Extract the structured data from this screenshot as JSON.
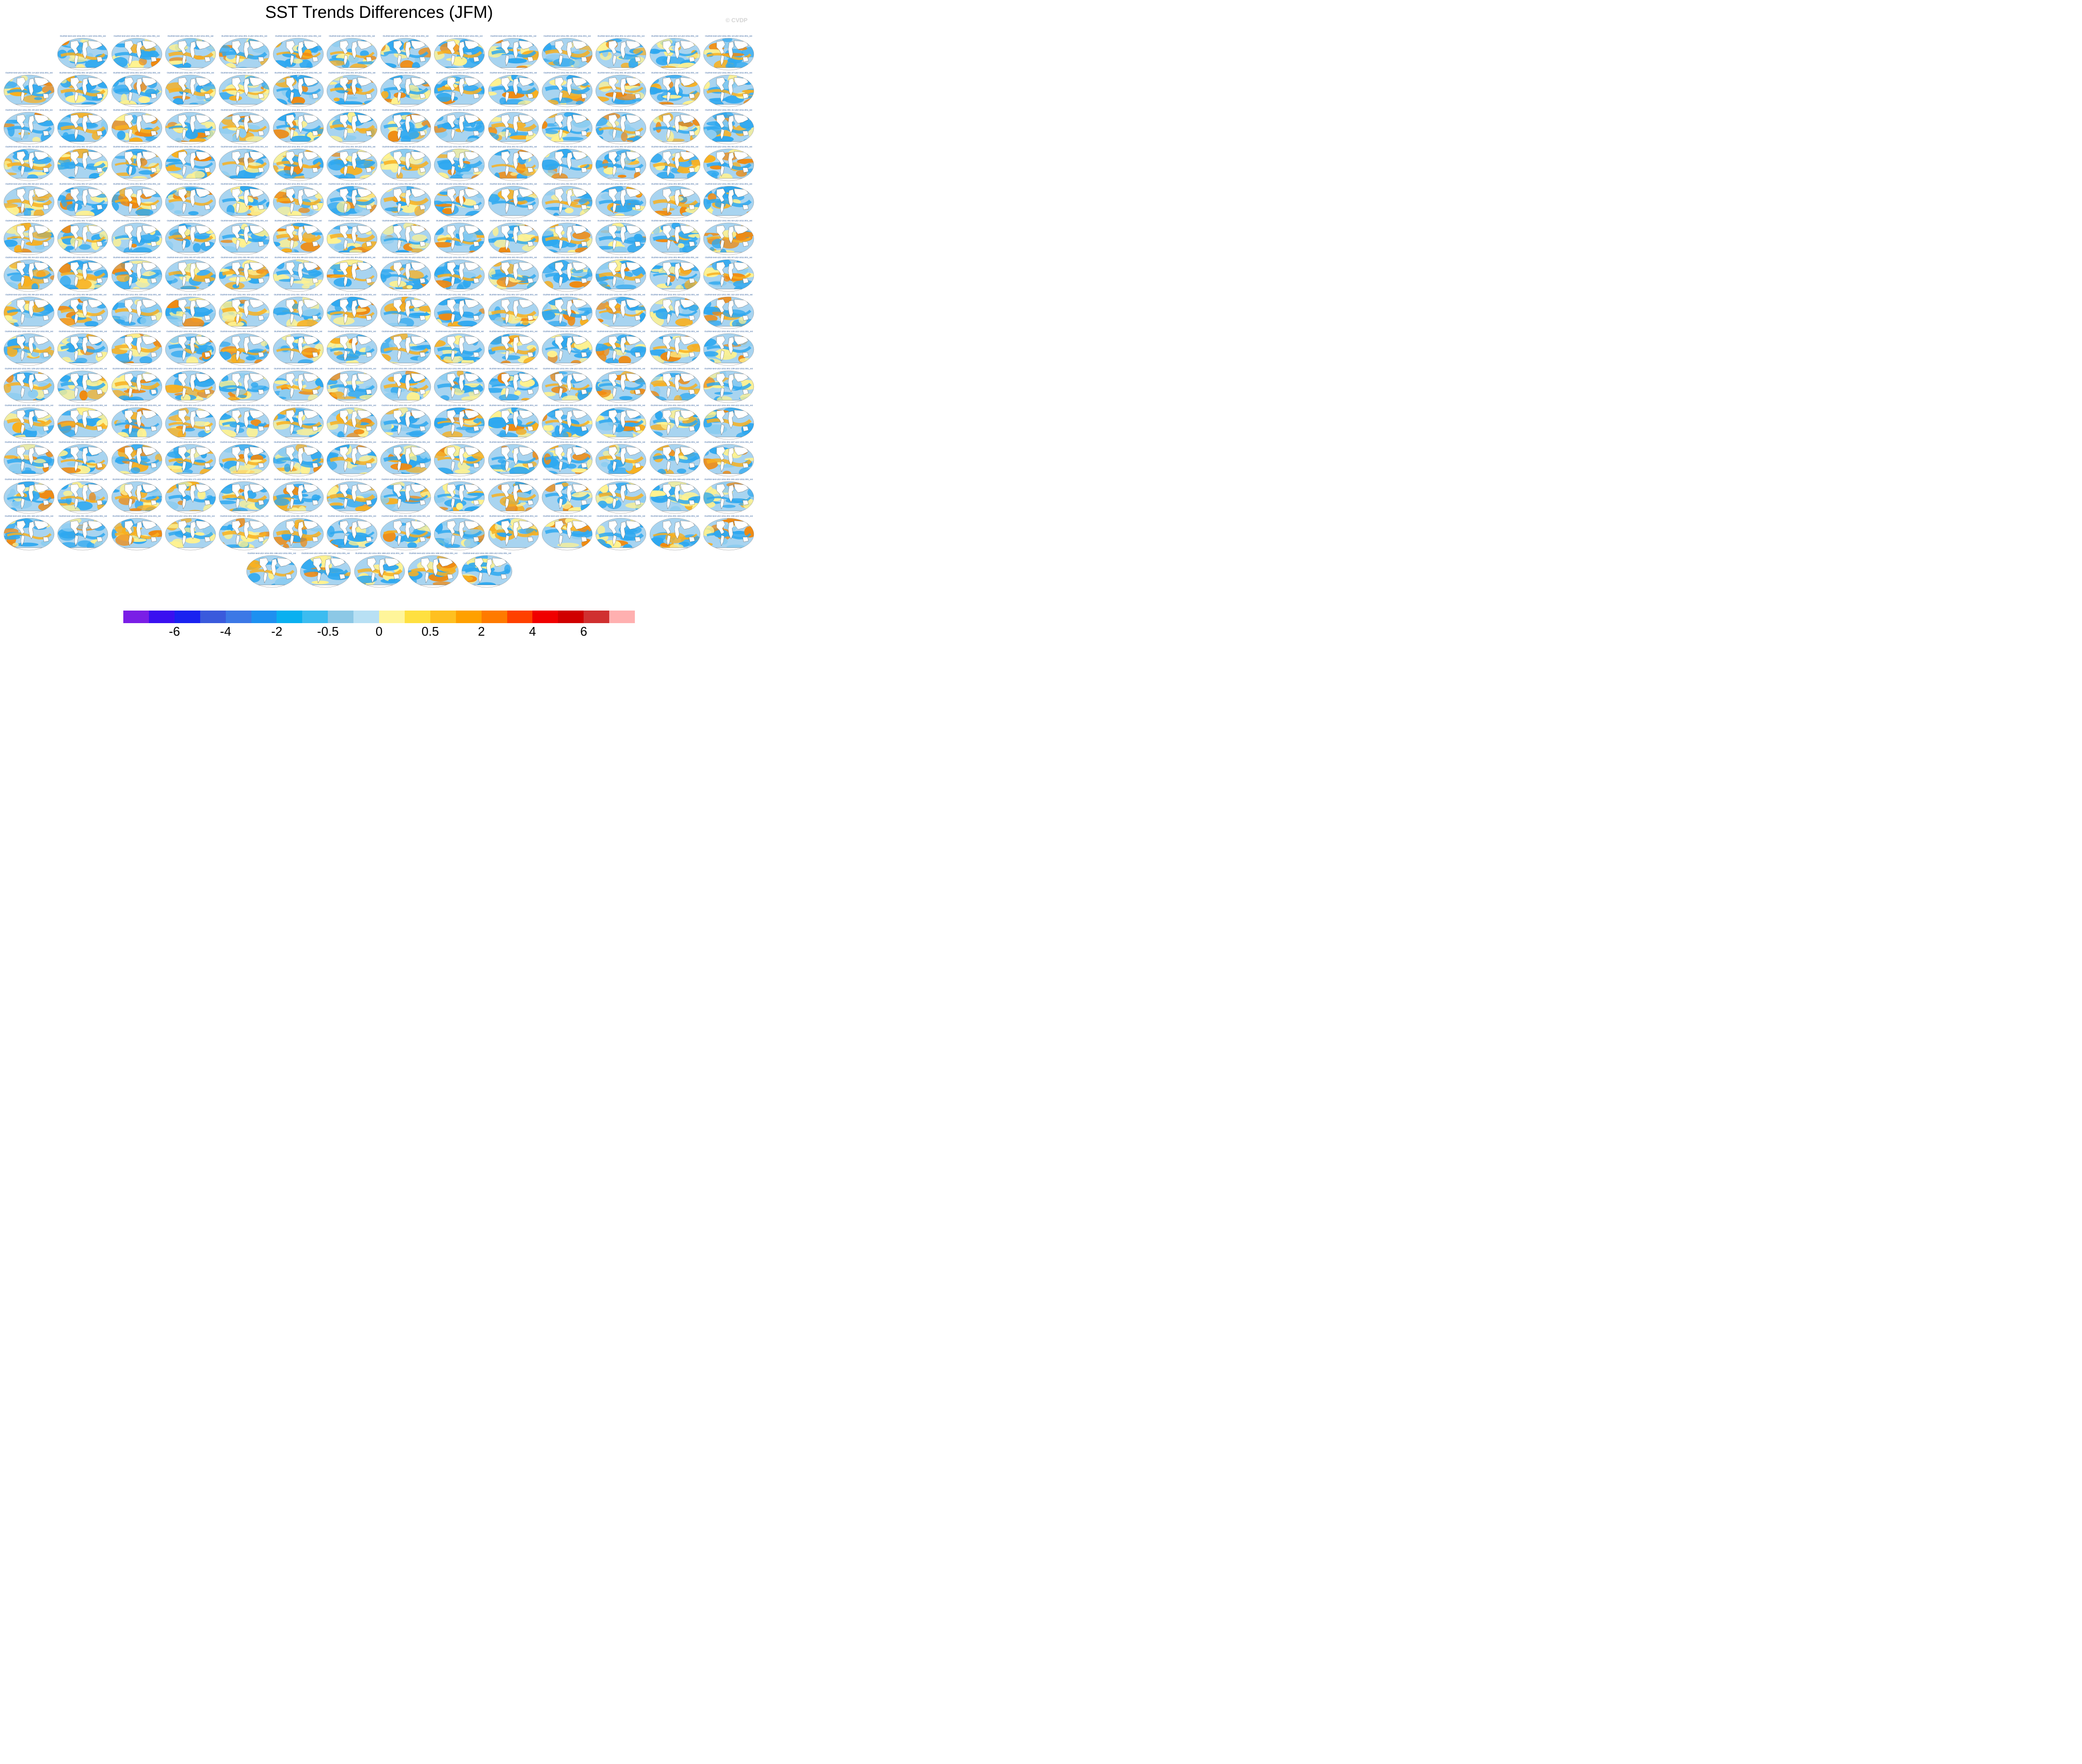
{
  "title": "SST Trends Differences (JFM)",
  "watermark": "© CVDP",
  "grid": {
    "panels": 200,
    "row_counts": [
      13,
      14,
      14,
      14,
      14,
      14,
      14,
      14,
      14,
      14,
      14,
      14,
      14,
      14,
      5
    ]
  },
  "panel_labels": [
    "OLENS-test-LE2-1011.001 1-LE2-1011.001_sst",
    "OLENS-test-LE2-1011.001 2-LE2-1011.001_sst",
    "OLENS-test-LE2-1011.001 3-LE2-1011.001_sst",
    "OLENS-test-LE2-1011.001 4-LE2-1011.001_sst",
    "OLENS-test-LE2-1011.001 5-LE2-1011.001_sst",
    "OLENS-test-LE2-1011.001 6-LE2-1011.001_sst",
    "OLENS-test-LE2-1011.001 7-LE2-1011.001_sst",
    "OLENS-test-LE2-1011.001 8-LE2-1011.001_sst",
    "OLENS-test-LE2-1011.001 9-LE2-1011.001_sst",
    "OLENS-test-LE2-1011.001 10-LE2-1011.001_sst",
    "OLENS-test-LE2-1011.001 11-LE2-1011.001_sst",
    "OLENS-test-LE2-1011.001 12-LE2-1011.001_sst",
    "OLENS-test-LE2-1011.001 13-LE2-1011.001_sst",
    "OLENS-test-LE2-1011.001 14-LE2-1011.001_sst",
    "OLENS-test-LE2-1011.001 15-LE2-1011.001_sst",
    "OLENS-test-LE2-1011.001 16-LE2-1011.001_sst",
    "OLENS-test-LE2-1011.001 17-LE2-1011.001_sst",
    "OLENS-test-LE2-1011.001 18-LE2-1011.001_sst",
    "OLENS-test-LE2-1011.001 19-LE2-1011.001_sst",
    "OLENS-test-LE2-1011.001 20-LE2-1011.001_sst",
    "OLENS-test-LE2-1011.001 21-LE2-1011.001_sst",
    "OLENS-test-LE2-1011.001 22-LE2-1011.001_sst",
    "OLENS-test-LE2-1011.001 23-LE2-1011.001_sst",
    "OLENS-test-LE2-1011.001 24-LE2-1011.001_sst",
    "OLENS-test-LE2-1011.001 25-LE2-1011.001_sst",
    "OLENS-test-LE2-1011.001 26-LE2-1011.001_sst",
    "OLENS-test-LE2-1011.001 27-LE2-1011.001_sst",
    "OLENS-test-LE2-1011.001 28-LE2-1011.001_sst",
    "OLENS-test-LE2-1011.001 29-LE2-1011.001_sst",
    "OLENS-test-LE2-1011.001 30-LE2-1011.001_sst",
    "OLENS-test-LE2-1011.001 31-LE2-1011.001_sst",
    "OLENS-test-LE2-1011.001 32-LE2-1011.001_sst",
    "OLENS-test-LE2-1011.001 33-LE2-1011.001_sst",
    "OLENS-test-LE2-1011.001 34-LE2-1011.001_sst",
    "OLENS-test-LE2-1011.001 35-LE2-1011.001_sst",
    "OLENS-test-LE2-1011.001 36-LE2-1011.001_sst",
    "OLENS-test-LE2-1011.001 37-LE2-1011.001_sst",
    "OLENS-test-LE2-1011.001 38-LE2-1011.001_sst",
    "OLENS-test-LE2-1011.001 39-LE2-1011.001_sst",
    "OLENS-test-LE2-1011.001 40-LE2-1011.001_sst",
    "OLENS-test-LE2-1011.001 41-LE2-1011.001_sst",
    "OLENS-test-LE2-1011.001 42-LE2-1011.001_sst",
    "OLENS-test-LE2-1011.001 43-LE2-1011.001_sst",
    "OLENS-test-LE2-1011.001 44-LE2-1011.001_sst",
    "OLENS-test-LE2-1011.001 45-LE2-1011.001_sst",
    "OLENS-test-LE2-1011.001 46-LE2-1011.001_sst",
    "OLENS-test-LE2-1011.001 47-LE2-1011.001_sst",
    "OLENS-test-LE2-1011.001 48-LE2-1011.001_sst",
    "OLENS-test-LE2-1011.001 49-LE2-1011.001_sst",
    "OLENS-test-LE2-1011.001 50-LE2-1011.001_sst",
    "OLENS-test-LE2-1011.001 51-LE2-1011.001_sst",
    "OLENS-test-LE2-1011.001 52-LE2-1011.001_sst",
    "OLENS-test-LE2-1011.001 53-LE2-1011.001_sst",
    "OLENS-test-LE2-1011.001 54-LE2-1011.001_sst",
    "OLENS-test-LE2-1011.001 55-LE2-1011.001_sst",
    "OLENS-test-LE2-1011.001 56-LE2-1011.001_sst",
    "OLENS-test-LE2-1011.001 57-LE2-1011.001_sst",
    "OLENS-test-LE2-1011.001 58-LE2-1011.001_sst",
    "OLENS-test-LE2-1011.001 59-LE2-1011.001_sst",
    "OLENS-test-LE2-1011.001 60-LE2-1011.001_sst",
    "OLENS-test-LE2-1011.001 61-LE2-1011.001_sst",
    "OLENS-test-LE2-1011.001 62-LE2-1011.001_sst",
    "OLENS-test-LE2-1011.001 63-LE2-1011.001_sst",
    "OLENS-test-LE2-1011.001 64-LE2-1011.001_sst",
    "OLENS-test-LE2-1011.001 65-LE2-1011.001_sst",
    "OLENS-test-LE2-1011.001 66-LE2-1011.001_sst",
    "OLENS-test-LE2-1011.001 67-LE2-1011.001_sst",
    "OLENS-test-LE2-1011.001 68-LE2-1011.001_sst",
    "OLENS-test-LE2-1011.001 69-LE2-1011.001_sst",
    "OLENS-test-LE2-1011.001 70-LE2-1011.001_sst",
    "OLENS-test-LE2-1011.001 71-LE2-1011.001_sst",
    "OLENS-test-LE2-1011.001 72-LE2-1011.001_sst",
    "OLENS-test-LE2-1011.001 73-LE2-1011.001_sst",
    "OLENS-test-LE2-1011.001 74-LE2-1011.001_sst",
    "OLENS-test-LE2-1011.001 75-LE2-1011.001_sst",
    "OLENS-test-LE2-1011.001 76-LE2-1011.001_sst",
    "OLENS-test-LE2-1011.001 77-LE2-1011.001_sst",
    "OLENS-test-LE2-1011.001 78-LE2-1011.001_sst",
    "OLENS-test-LE2-1011.001 79-LE2-1011.001_sst",
    "OLENS-test-LE2-1011.001 80-LE2-1011.001_sst",
    "OLENS-test-LE2-1011.001 81-LE2-1011.001_sst",
    "OLENS-test-LE2-1011.001 82-LE2-1011.001_sst",
    "OLENS-test-LE2-1011.001 83-LE2-1011.001_sst",
    "OLENS-test-LE2-1011.001 84-LE2-1011.001_sst",
    "OLENS-test-LE2-1011.001 85-LE2-1011.001_sst",
    "OLENS-test-LE2-1011.001 86-LE2-1011.001_sst",
    "OLENS-test-LE2-1011.001 87-LE2-1011.001_sst",
    "OLENS-test-LE2-1011.001 88-LE2-1011.001_sst",
    "OLENS-test-LE2-1011.001 89-LE2-1011.001_sst",
    "OLENS-test-LE2-1011.001 90-LE2-1011.001_sst",
    "OLENS-test-LE2-1011.001 91-LE2-1011.001_sst",
    "OLENS-test-LE2-1011.001 92-LE2-1011.001_sst",
    "OLENS-test-LE2-1011.001 93-LE2-1011.001_sst",
    "OLENS-test-LE2-1011.001 94-LE2-1011.001_sst",
    "OLENS-test-LE2-1011.001 95-LE2-1011.001_sst",
    "OLENS-test-LE2-1011.001 96-LE2-1011.001_sst",
    "OLENS-test-LE2-1011.001 97-LE2-1011.001_sst",
    "OLENS-test-LE2-1011.001 98-LE2-1011.001_sst",
    "OLENS-test-LE2-1011.001 99-LE2-1011.001_sst",
    "OLENS-test-LE2-1011.001 100-LE2-1011.001_sst",
    "OLENS-test-LE2-1011.001 101-LE2-1011.001_sst",
    "OLENS-test-LE2-1011.001 102-LE2-1011.001_sst",
    "OLENS-test-LE2-1011.001 103-LE2-1011.001_sst",
    "OLENS-test-LE2-1011.001 104-LE2-1011.001_sst",
    "OLENS-test-LE2-1011.001 105-LE2-1011.001_sst",
    "OLENS-test-LE2-1011.001 106-LE2-1011.001_sst",
    "OLENS-test-LE2-1011.001 107-LE2-1011.001_sst",
    "OLENS-test-LE2-1011.001 108-LE2-1011.001_sst",
    "OLENS-test-LE2-1011.001 109-LE2-1011.001_sst",
    "OLENS-test-LE2-1011.001 110-LE2-1011.001_sst",
    "OLENS-test-LE2-1011.001 111-LE2-1011.001_sst",
    "OLENS-test-LE2-1011.001 112-LE2-1011.001_sst",
    "OLENS-test-LE2-1011.001 113-LE2-1011.001_sst",
    "OLENS-test-LE2-1011.001 114-LE2-1011.001_sst",
    "OLENS-test-LE2-1011.001 115-LE2-1011.001_sst",
    "OLENS-test-LE2-1011.001 116-LE2-1011.001_sst",
    "OLENS-test-LE2-1011.001 117-LE2-1011.001_sst",
    "OLENS-test-LE2-1011.001 118-LE2-1011.001_sst",
    "OLENS-test-LE2-1011.001 119-LE2-1011.001_sst",
    "OLENS-test-LE2-1011.001 120-LE2-1011.001_sst",
    "OLENS-test-LE2-1011.001 121-LE2-1011.001_sst",
    "OLENS-test-LE2-1011.001 122-LE2-1011.001_sst",
    "OLENS-test-LE2-1011.001 123-LE2-1011.001_sst",
    "OLENS-test-LE2-1011.001 124-LE2-1011.001_sst",
    "OLENS-test-LE2-1011.001 125-LE2-1011.001_sst",
    "OLENS-test-LE2-1011.001 126-LE2-1011.001_sst",
    "OLENS-test-LE2-1011.001 127-LE2-1011.001_sst",
    "OLENS-test-LE2-1011.001 128-LE2-1011.001_sst",
    "OLENS-test-LE2-1011.001 129-LE2-1011.001_sst",
    "OLENS-test-LE2-1011.001 130-LE2-1011.001_sst",
    "OLENS-test-LE2-1011.001 131-LE2-1011.001_sst",
    "OLENS-test-LE2-1011.001 132-LE2-1011.001_sst",
    "OLENS-test-LE2-1011.001 133-LE2-1011.001_sst",
    "OLENS-test-LE2-1011.001 134-LE2-1011.001_sst",
    "OLENS-test-LE2-1011.001 135-LE2-1011.001_sst",
    "OLENS-test-LE2-1011.001 136-LE2-1011.001_sst",
    "OLENS-test-LE2-1011.001 137-LE2-1011.001_sst",
    "OLENS-test-LE2-1011.001 138-LE2-1011.001_sst",
    "OLENS-test-LE2-1011.001 139-LE2-1011.001_sst",
    "OLENS-test-LE2-1011.001 140-LE2-1011.001_sst",
    "OLENS-test-LE2-1011.001 141-LE2-1011.001_sst",
    "OLENS-test-LE2-1011.001 142-LE2-1011.001_sst",
    "OLENS-test-LE2-1011.001 143-LE2-1011.001_sst",
    "OLENS-test-LE2-1011.001 144-LE2-1011.001_sst",
    "OLENS-test-LE2-1011.001 145-LE2-1011.001_sst",
    "OLENS-test-LE2-1011.001 146-LE2-1011.001_sst",
    "OLENS-test-LE2-1011.001 147-LE2-1011.001_sst",
    "OLENS-test-LE2-1011.001 148-LE2-1011.001_sst",
    "OLENS-test-LE2-1011.001 149-LE2-1011.001_sst",
    "OLENS-test-LE2-1011.001 150-LE2-1011.001_sst",
    "OLENS-test-LE2-1011.001 151-LE2-1011.001_sst",
    "OLENS-test-LE2-1011.001 152-LE2-1011.001_sst",
    "OLENS-test-LE2-1011.001 153-LE2-1011.001_sst",
    "OLENS-test-LE2-1011.001 154-LE2-1011.001_sst",
    "OLENS-test-LE2-1011.001 155-LE2-1011.001_sst",
    "OLENS-test-LE2-1011.001 156-LE2-1011.001_sst",
    "OLENS-test-LE2-1011.001 157-LE2-1011.001_sst",
    "OLENS-test-LE2-1011.001 158-LE2-1011.001_sst",
    "OLENS-test-LE2-1011.001 159-LE2-1011.001_sst",
    "OLENS-test-LE2-1011.001 160-LE2-1011.001_sst",
    "OLENS-test-LE2-1011.001 161-LE2-1011.001_sst",
    "OLENS-test-LE2-1011.001 162-LE2-1011.001_sst",
    "OLENS-test-LE2-1011.001 163-LE2-1011.001_sst",
    "OLENS-test-LE2-1011.001 164-LE2-1011.001_sst",
    "OLENS-test-LE2-1011.001 165-LE2-1011.001_sst",
    "OLENS-test-LE2-1011.001 166-LE2-1011.001_sst",
    "OLENS-test-LE2-1011.001 167-LE2-1011.001_sst",
    "OLENS-test-LE2-1011.001 168-LE2-1011.001_sst",
    "OLENS-test-LE2-1011.001 169-LE2-1011.001_sst",
    "OLENS-test-LE2-1011.001 170-LE2-1011.001_sst",
    "OLENS-test-LE2-1011.001 171-LE2-1011.001_sst",
    "OLENS-test-LE2-1011.001 172-LE2-1011.001_sst",
    "OLENS-test-LE2-1011.001 173-LE2-1011.001_sst",
    "OLENS-test-LE2-1011.001 174-LE2-1011.001_sst",
    "OLENS-test-LE2-1011.001 175-LE2-1011.001_sst",
    "OLENS-test-LE2-1011.001 176-LE2-1011.001_sst",
    "OLENS-test-LE2-1011.001 177-LE2-1011.001_sst",
    "OLENS-test-LE2-1011.001 178-LE2-1011.001_sst",
    "OLENS-test-LE2-1011.001 179-LE2-1011.001_sst",
    "OLENS-test-LE2-1011.001 180-LE2-1011.001_sst",
    "OLENS-test-LE2-1011.001 181-LE2-1011.001_sst",
    "OLENS-test-LE2-1011.001 182-LE2-1011.001_sst",
    "OLENS-test-LE2-1011.001 183-LE2-1011.001_sst",
    "OLENS-test-LE2-1011.001 184-LE2-1011.001_sst",
    "OLENS-test-LE2-1011.001 185-LE2-1011.001_sst",
    "OLENS-test-LE2-1011.001 186-LE2-1011.001_sst",
    "OLENS-test-LE2-1011.001 187-LE2-1011.001_sst",
    "OLENS-test-LE2-1011.001 188-LE2-1011.001_sst",
    "OLENS-test-LE2-1011.001 189-LE2-1011.001_sst",
    "OLENS-test-LE2-1011.001 190-LE2-1011.001_sst",
    "OLENS-test-LE2-1011.001 191-LE2-1011.001_sst",
    "OLENS-test-LE2-1011.001 192-LE2-1011.001_sst",
    "OLENS-test-LE2-1011.001 193-LE2-1011.001_sst",
    "OLENS-test-LE2-1011.001 194-LE2-1011.001_sst",
    "OLENS-test-LE2-1011.001 195-LE2-1011.001_sst",
    "OLENS-test-LE2-1011.001 196-LE2-1011.001_sst",
    "OLENS-test-LE2-1011.001 197-LE2-1011.001_sst",
    "OLENS-test-LE2-1011.001 198-LE2-1011.001_sst",
    "OLENS-test-LE2-1011.001 199-LE2-1011.001_sst",
    "OLENS-test-LE2-1011.001 200-LE2-1011.001_sst"
  ],
  "colorbar": {
    "colors": [
      "#7a1ee6",
      "#3a10f0",
      "#1a22f0",
      "#3a5adc",
      "#3c78e6",
      "#1e90f0",
      "#0ab0f0",
      "#3cbcf0",
      "#8cc8e6",
      "#b8e0f4",
      "#fff59a",
      "#ffe040",
      "#ffc020",
      "#ffa000",
      "#ff7a00",
      "#ff4000",
      "#f00000",
      "#d00000",
      "#d03030",
      "#ffb0b0"
    ],
    "tick_labels": [
      {
        "text": "-6",
        "boundary": 2
      },
      {
        "text": "-4",
        "boundary": 4
      },
      {
        "text": "-2",
        "boundary": 6
      },
      {
        "text": "-0.5",
        "boundary": 8
      },
      {
        "text": "0",
        "boundary": 10
      },
      {
        "text": "0.5",
        "boundary": 12
      },
      {
        "text": "2",
        "boundary": 14
      },
      {
        "text": "4",
        "boundary": 16
      },
      {
        "text": "6",
        "boundary": 18
      }
    ]
  },
  "map_colors": {
    "ocean_base": "#a8d4f0",
    "cool": "#2ea8f0",
    "cool_light": "#8cccf0",
    "warm": "#f8b020",
    "warm_deep": "#f08a10",
    "warm_light": "#fff290",
    "land": "#ffffff",
    "coast": "#404040"
  }
}
